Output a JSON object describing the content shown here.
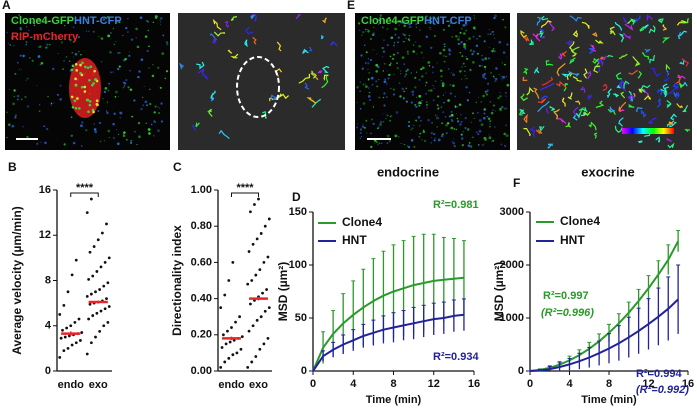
{
  "images": {
    "panel_a": "A",
    "panel_e": "E",
    "a_labels": [
      {
        "text": "Clone4-GFP",
        "color": "#39d33a"
      },
      {
        "text": "HNT-CFP",
        "color": "#3a7fe0"
      },
      {
        "text": "RIP-mCherry",
        "color": "#e8262a"
      }
    ],
    "e_labels": [
      {
        "text": "Clone4-GFP",
        "color": "#39d33a"
      },
      {
        "text": "HNT-CFP",
        "color": "#3a7fe0"
      }
    ]
  },
  "chart_data": [
    {
      "type": "dot",
      "panel": "B",
      "ylabel": "Average velocity (µm/min)",
      "categories": [
        "endo",
        "exo"
      ],
      "values": [
        3.3,
        6.1
      ],
      "errors": [
        0.2,
        0.1
      ],
      "mean_color": "#e8262a",
      "points": [
        [
          1.2,
          1.8,
          2.0,
          2.3,
          2.5,
          2.7,
          2.9,
          3.0,
          3.1,
          3.2,
          3.3,
          3.4,
          3.6,
          3.8,
          4.0,
          4.3,
          4.6,
          5.0,
          5.8,
          7.0,
          8.5,
          9.8
        ],
        [
          1.5,
          2.5,
          3.0,
          3.5,
          4.0,
          4.3,
          4.6,
          4.9,
          5.1,
          5.3,
          5.5,
          5.7,
          5.9,
          6.0,
          6.1,
          6.2,
          6.4,
          6.6,
          6.8,
          7.0,
          7.2,
          7.5,
          7.8,
          8.1,
          8.4,
          8.8,
          9.2,
          9.6,
          10.0,
          10.5,
          11.0,
          11.6,
          12.2,
          13.0,
          14.0,
          15.2
        ]
      ],
      "significance": "****",
      "ylim": [
        0,
        16
      ],
      "yticks": [
        0,
        4,
        8,
        12,
        16
      ]
    },
    {
      "type": "dot",
      "panel": "C",
      "ylabel": "Directionality index",
      "categories": [
        "endo",
        "exo"
      ],
      "values": [
        0.18,
        0.4
      ],
      "errors": [
        0.01,
        0.01
      ],
      "mean_color": "#e8262a",
      "points": [
        [
          0.02,
          0.05,
          0.07,
          0.09,
          0.1,
          0.12,
          0.13,
          0.15,
          0.16,
          0.17,
          0.18,
          0.19,
          0.2,
          0.22,
          0.24,
          0.27,
          0.3,
          0.35,
          0.42,
          0.5,
          0.6
        ],
        [
          0.02,
          0.05,
          0.08,
          0.12,
          0.15,
          0.18,
          0.22,
          0.25,
          0.28,
          0.3,
          0.33,
          0.35,
          0.37,
          0.39,
          0.41,
          0.43,
          0.45,
          0.48,
          0.5,
          0.53,
          0.56,
          0.6,
          0.63,
          0.66,
          0.7,
          0.73,
          0.76,
          0.8,
          0.84,
          0.88,
          0.92,
          0.95
        ]
      ],
      "significance": "****",
      "ylim": [
        0,
        1
      ],
      "yticks": [
        {
          "value": 0,
          "label": "0.00"
        },
        {
          "value": 0.2,
          "label": "0.20"
        },
        {
          "value": 0.4,
          "label": "0.40"
        },
        {
          "value": 0.6,
          "label": "0.60"
        },
        {
          "value": 0.8,
          "label": "0.80"
        },
        {
          "value": 1,
          "label": "1.00"
        }
      ]
    },
    {
      "type": "line",
      "panel": "D",
      "title": "endocrine",
      "xlabel": "Time (min)",
      "ylabel": "MSD (µm²)",
      "x": [
        0,
        1,
        2,
        3,
        4,
        5,
        6,
        7,
        8,
        9,
        10,
        11,
        12,
        13,
        14,
        15
      ],
      "series": [
        {
          "name": "Clone4",
          "color": "#2a9a2a",
          "values": [
            0,
            22,
            35,
            45,
            53,
            60,
            66,
            71,
            75,
            78,
            81,
            83,
            85,
            86,
            87,
            88
          ],
          "errors": [
            0,
            15,
            22,
            28,
            32,
            36,
            40,
            42,
            44,
            45,
            46,
            46,
            44,
            40,
            38,
            35
          ]
        },
        {
          "name": "HNT",
          "color": "#22229a",
          "values": [
            0,
            14,
            20,
            25,
            29,
            33,
            36,
            39,
            41,
            43,
            45,
            47,
            49,
            50,
            52,
            53
          ],
          "errors": [
            0,
            5,
            7,
            9,
            10,
            11,
            12,
            13,
            14,
            14,
            15,
            15,
            15,
            15,
            15,
            15
          ]
        }
      ],
      "annotations": [
        {
          "text": "R²=0.981",
          "color": "#2a9a2a"
        },
        {
          "text": "R²=0.934",
          "color": "#22229a"
        }
      ],
      "xlim": [
        0,
        16
      ],
      "xticks": [
        0,
        4,
        8,
        12,
        16
      ],
      "ylim": [
        0,
        150
      ],
      "yticks": [
        0,
        50,
        100,
        150
      ]
    },
    {
      "type": "line",
      "panel": "F",
      "title": "exocrine",
      "xlabel": "Time (min)",
      "ylabel": "MSD (µm²)",
      "x": [
        0,
        1,
        2,
        3,
        4,
        5,
        6,
        7,
        8,
        9,
        10,
        11,
        12,
        13,
        14,
        15
      ],
      "series": [
        {
          "name": "Clone4",
          "color": "#2a9a2a",
          "values": [
            0,
            20,
            60,
            120,
            200,
            300,
            420,
            560,
            720,
            900,
            1100,
            1320,
            1560,
            1820,
            2100,
            2450
          ],
          "errors": [
            0,
            20,
            40,
            60,
            80,
            100,
            120,
            140,
            160,
            180,
            200,
            220,
            240,
            260,
            280,
            200
          ]
        },
        {
          "name": "HNT",
          "color": "#22229a",
          "values": [
            0,
            10,
            35,
            75,
            125,
            185,
            255,
            335,
            425,
            525,
            635,
            755,
            885,
            1025,
            1175,
            1350
          ],
          "errors": [
            0,
            20,
            50,
            80,
            110,
            150,
            190,
            230,
            280,
            330,
            380,
            430,
            480,
            540,
            600,
            650
          ]
        }
      ],
      "annotations": [
        {
          "text": "R²=0.997",
          "color": "#2a9a2a"
        },
        {
          "text": "(R²=0.996)",
          "color": "#2a9a2a"
        },
        {
          "text": "R²=0.994",
          "color": "#22229a"
        },
        {
          "text": "(R²=0.992)",
          "color": "#22229a"
        }
      ],
      "xlim": [
        0,
        16
      ],
      "xticks": [
        0,
        4,
        8,
        12,
        16
      ],
      "ylim": [
        0,
        3000
      ],
      "yticks": [
        0,
        1000,
        2000,
        3000
      ]
    }
  ]
}
